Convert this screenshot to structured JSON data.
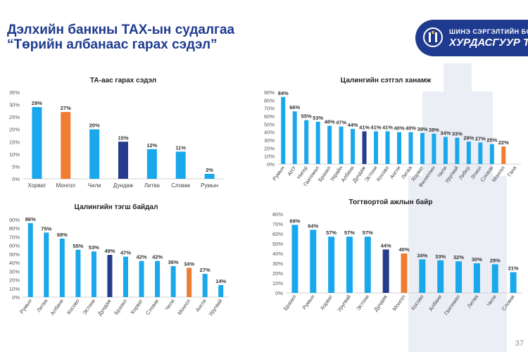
{
  "header": {
    "title_line1": "Дэлхийн банкны ТАХ-ын судалгаа",
    "title_line2": "“Төрийн албанаас гарах сэдэл”",
    "banner_line1": "ШИНЭ СЭРГЭЛТИЙН БОДЛ",
    "banner_line2": "ХУРДАСГУУР Т",
    "page_number": "37"
  },
  "colors": {
    "blue": "#1aa8ec",
    "orange": "#ef7d31",
    "navy": "#253b8e",
    "title": "#1f3b8f"
  },
  "chart_data": [
    {
      "type": "bar",
      "title": "ТА-аас гарах сэдэл",
      "categories": [
        "Хорват",
        "Монгол",
        "Чили",
        "Дундаж",
        "Литва",
        "Словак",
        "Румын"
      ],
      "values": [
        29,
        27,
        20,
        15,
        12,
        11,
        2
      ],
      "labels": [
        "29%",
        "27%",
        "20%",
        "15%",
        "12%",
        "11%",
        "2%"
      ],
      "ylim": [
        0,
        35
      ],
      "ticks": [
        "0%",
        "5%",
        "10%",
        "15%",
        "20%",
        "25%",
        "30%",
        "35%"
      ],
      "tick_values": [
        0,
        5,
        10,
        15,
        20,
        25,
        30,
        35
      ],
      "highlight": {
        "Монгол": "orange",
        "Дундаж": "navy"
      },
      "xlabel_rotation": "none",
      "grid": false
    },
    {
      "type": "bar",
      "title": "Цалингийн сэтгэл ханамж",
      "categories": [
        "Румын",
        "АНУ",
        "Нигер",
        "Гватемал",
        "Бразил",
        "Украйн",
        "Албани",
        "Дундаж",
        "Эстони",
        "Косово",
        "Англи",
        "Литва",
        "Хорват",
        "Филиппин",
        "Чили",
        "Уругвай",
        "Либер",
        "Этиоп",
        "Словак",
        "Монгол",
        "Гана"
      ],
      "values": [
        84,
        66,
        55,
        53,
        48,
        47,
        44,
        41,
        41,
        41,
        40,
        40,
        39,
        38,
        34,
        33,
        28,
        27,
        25,
        22,
        null
      ],
      "labels": [
        "84%",
        "66%",
        "55%",
        "53%",
        "48%",
        "47%",
        "44%",
        "41%",
        "41%",
        "41%",
        "40%",
        "40%",
        "39%",
        "38%",
        "34%",
        "33%",
        "28%",
        "27%",
        "25%",
        "22%",
        ""
      ],
      "ylim": [
        0,
        90
      ],
      "ticks": [
        "0%",
        "10%",
        "20%",
        "30%",
        "40%",
        "50%",
        "60%",
        "70%",
        "80%",
        "90%"
      ],
      "tick_values": [
        0,
        10,
        20,
        30,
        40,
        50,
        60,
        70,
        80,
        90
      ],
      "highlight": {
        "Монгол": "orange",
        "Дундаж": "navy"
      },
      "xlabel_rotation": "rotated",
      "grid": false
    },
    {
      "type": "bar",
      "title": "Цалингийн тэгш байдал",
      "categories": [
        "Румын",
        "Литва",
        "Албани",
        "Косово",
        "Эстони",
        "Дундаж",
        "Бразил",
        "Хорват",
        "Словак",
        "Чили",
        "Монгол",
        "Англи",
        "Уругвай"
      ],
      "values": [
        86,
        75,
        68,
        55,
        53,
        49,
        47,
        42,
        42,
        36,
        34,
        27,
        14
      ],
      "labels": [
        "86%",
        "75%",
        "68%",
        "55%",
        "53%",
        "49%",
        "47%",
        "42%",
        "42%",
        "36%",
        "34%",
        "27%",
        "14%"
      ],
      "ylim": [
        0,
        90
      ],
      "ticks": [
        "0%",
        "10%",
        "20%",
        "30%",
        "40%",
        "50%",
        "60%",
        "70%",
        "80%",
        "90%"
      ],
      "tick_values": [
        0,
        10,
        20,
        30,
        40,
        50,
        60,
        70,
        80,
        90
      ],
      "highlight": {
        "Монгол": "orange",
        "Дундаж": "navy"
      },
      "xlabel_rotation": "rotated",
      "grid": false
    },
    {
      "type": "bar",
      "title": "Тогтвортой ажлын байр",
      "categories": [
        "Бразил",
        "Румын",
        "Хорват",
        "Уругвай",
        "Эстони",
        "Дундаж",
        "Монгол",
        "Косово",
        "Албани",
        "Гватемал",
        "Литва",
        "Чили",
        "Словак"
      ],
      "values": [
        69,
        64,
        57,
        57,
        57,
        44,
        40,
        34,
        33,
        32,
        30,
        29,
        21
      ],
      "labels": [
        "69%",
        "64%",
        "57%",
        "57%",
        "57%",
        "44%",
        "40%",
        "34%",
        "33%",
        "32%",
        "30%",
        "29%",
        "21%"
      ],
      "ylim": [
        0,
        80
      ],
      "ticks": [
        "0%",
        "10%",
        "20%",
        "30%",
        "40%",
        "50%",
        "60%",
        "70%",
        "80%"
      ],
      "tick_values": [
        0,
        10,
        20,
        30,
        40,
        50,
        60,
        70,
        80
      ],
      "highlight": {
        "Монгол": "orange",
        "Дундаж": "navy"
      },
      "xlabel_rotation": "rotated",
      "grid": false
    }
  ]
}
